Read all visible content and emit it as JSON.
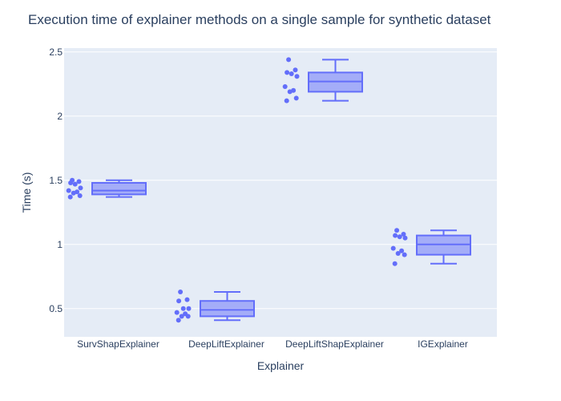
{
  "chart_data": {
    "type": "box",
    "title": "Execution time of explainer methods on a single sample for synthetic dataset",
    "xlabel": "Explainer",
    "ylabel": "Time (s)",
    "categories": [
      "SurvShapExplainer",
      "DeepLiftExplainer",
      "DeepLiftShapExplainer",
      "IGExplainer"
    ],
    "yticks": [
      0.5,
      1,
      1.5,
      2,
      2.5
    ],
    "ytick_labels": [
      "0.5",
      "1",
      "1.5",
      "2",
      "2.5"
    ],
    "ylim": [
      0.28,
      2.53
    ],
    "boxes": [
      {
        "min": 1.37,
        "q1": 1.39,
        "median": 1.42,
        "q3": 1.48,
        "max": 1.5
      },
      {
        "min": 0.41,
        "q1": 0.44,
        "median": 0.49,
        "q3": 0.56,
        "max": 0.63
      },
      {
        "min": 2.12,
        "q1": 2.19,
        "median": 2.27,
        "q3": 2.34,
        "max": 2.44
      },
      {
        "min": 0.85,
        "q1": 0.92,
        "median": 1.0,
        "q3": 1.07,
        "max": 1.11
      }
    ],
    "points": [
      [
        1.5,
        1.49,
        1.48,
        1.47,
        1.44,
        1.42,
        1.41,
        1.4,
        1.38,
        1.37
      ],
      [
        0.63,
        0.57,
        0.56,
        0.5,
        0.5,
        0.47,
        0.46,
        0.44,
        0.44,
        0.41
      ],
      [
        2.44,
        2.36,
        2.34,
        2.33,
        2.31,
        2.23,
        2.2,
        2.19,
        2.14,
        2.12
      ],
      [
        1.11,
        1.08,
        1.07,
        1.06,
        1.05,
        0.97,
        0.95,
        0.93,
        0.92,
        0.85
      ]
    ],
    "colors": {
      "stroke": "#636efa",
      "fill": "rgba(99,110,250,0.5)",
      "plot_bg": "#e5ecf6",
      "grid": "#ffffff"
    }
  }
}
